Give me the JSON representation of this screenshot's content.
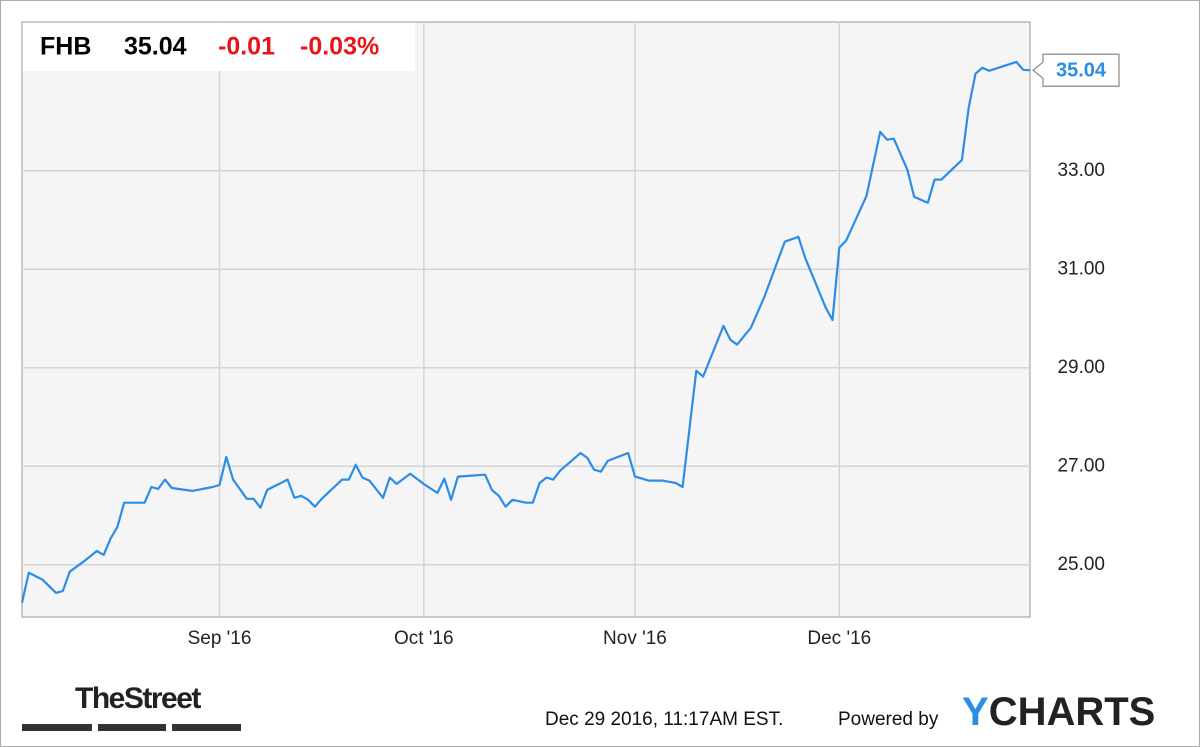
{
  "chart_data": {
    "type": "line",
    "symbol": "FHB",
    "price": 35.04,
    "change": -0.01,
    "change_percent": -0.03,
    "change_percent_label": "-0.03%",
    "color": "#2c8de6",
    "change_color": "#e8141a",
    "grid": true,
    "x": [
      0,
      1,
      3,
      5,
      6,
      7,
      9,
      11,
      12,
      13,
      14,
      15,
      18,
      19,
      20,
      21,
      22,
      25,
      28,
      29,
      30,
      31,
      33,
      34,
      35,
      36,
      39,
      40,
      41,
      42,
      43,
      44,
      47,
      48,
      49,
      50,
      51,
      53,
      54,
      55,
      57,
      59,
      61,
      62,
      63,
      64,
      68,
      69,
      70,
      71,
      72,
      74,
      75,
      76,
      77,
      78,
      79,
      81,
      82,
      83,
      84,
      85,
      86,
      89,
      90,
      92,
      94,
      96,
      97,
      99,
      100,
      103,
      104,
      105,
      107,
      109,
      112,
      114,
      115,
      116,
      118,
      119,
      120,
      121,
      124,
      126,
      127,
      128,
      130,
      131,
      133,
      134,
      135,
      138,
      139,
      140,
      141,
      142,
      146,
      147,
      148
    ],
    "values": [
      24.23,
      24.84,
      24.7,
      24.43,
      24.47,
      24.86,
      25.06,
      25.28,
      25.2,
      25.53,
      25.77,
      26.26,
      26.26,
      26.58,
      26.54,
      26.73,
      26.56,
      26.5,
      26.58,
      26.62,
      27.19,
      26.73,
      26.34,
      26.34,
      26.16,
      26.52,
      26.73,
      26.36,
      26.4,
      26.32,
      26.18,
      26.34,
      26.73,
      26.73,
      27.03,
      26.77,
      26.71,
      26.36,
      26.77,
      26.64,
      26.85,
      26.64,
      26.46,
      26.75,
      26.32,
      26.79,
      26.83,
      26.52,
      26.4,
      26.18,
      26.32,
      26.26,
      26.26,
      26.66,
      26.77,
      26.73,
      26.91,
      27.15,
      27.27,
      27.17,
      26.93,
      26.89,
      27.11,
      27.27,
      26.79,
      26.71,
      26.71,
      26.66,
      26.58,
      28.94,
      28.82,
      29.85,
      29.57,
      29.47,
      29.81,
      30.44,
      31.56,
      31.66,
      31.23,
      30.89,
      30.22,
      29.97,
      31.44,
      31.58,
      32.49,
      33.79,
      33.63,
      33.65,
      33.02,
      32.47,
      32.35,
      32.82,
      32.82,
      33.22,
      34.28,
      34.97,
      35.09,
      35.03,
      35.21,
      35.05,
      35.04
    ],
    "xlim": [
      0,
      148
    ],
    "xticks": [
      {
        "value": 29,
        "label": "Sep '16"
      },
      {
        "value": 59,
        "label": "Oct '16"
      },
      {
        "value": 90,
        "label": "Nov '16"
      },
      {
        "value": 120,
        "label": "Dec '16"
      }
    ],
    "ylim": [
      23.94,
      36.02
    ],
    "yticks": [
      {
        "value": 25,
        "label": "25.00"
      },
      {
        "value": 27,
        "label": "27.00"
      },
      {
        "value": 29,
        "label": "29.00"
      },
      {
        "value": 31,
        "label": "31.00"
      },
      {
        "value": 33,
        "label": "33.00"
      }
    ]
  },
  "footer": {
    "logo": "TheStreet",
    "timestamp": "Dec 29 2016, 11:17AM EST.",
    "powered_by": "Powered by",
    "brand_y": "Y",
    "brand_rest": "CHARTS"
  }
}
